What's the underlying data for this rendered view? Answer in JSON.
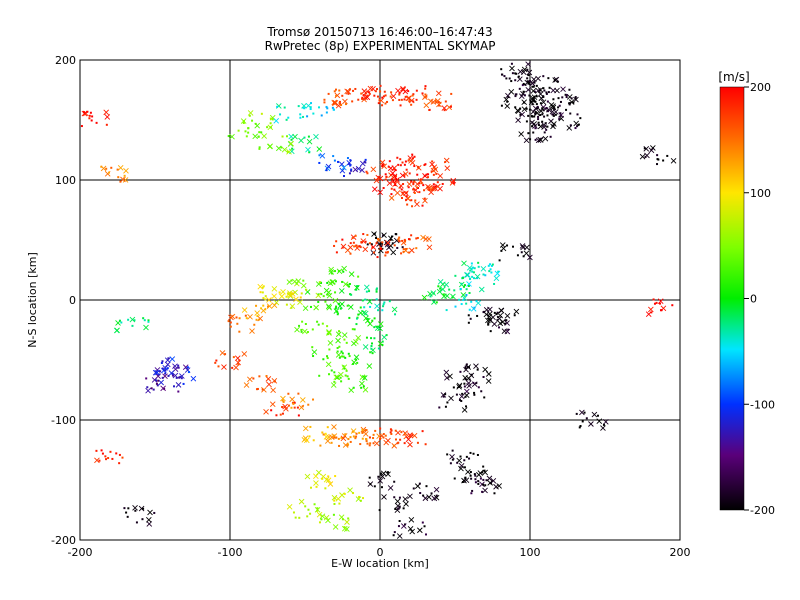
{
  "chart_data": {
    "type": "scatter",
    "title": "Tromsø 20150713 16:46:00–16:47:43",
    "subtitle": "RwPretec (8p) EXPERIMENTAL SKYMAP",
    "xlabel": "E-W location [km]",
    "ylabel": "N-S location [km]",
    "xlim": [
      -200,
      200
    ],
    "ylim": [
      -200,
      200
    ],
    "xticks": [
      -200,
      -100,
      0,
      100,
      200
    ],
    "yticks": [
      -200,
      -100,
      0,
      100,
      200
    ],
    "grid": true,
    "colorbar": {
      "label": "[m/s]",
      "min": -200,
      "max": 200,
      "ticks": [
        200,
        100,
        0,
        -100,
        -200
      ],
      "colormap": "rainbow (black-purple-blue-cyan-green-yellow-red)"
    },
    "markers": [
      "cross",
      "dot"
    ],
    "series": [
      {
        "cluster": "NE black cloud",
        "points": [
          [
            95,
            185,
            -200
          ],
          [
            100,
            175,
            -190
          ],
          [
            105,
            170,
            -200
          ],
          [
            110,
            160,
            -200
          ],
          [
            115,
            155,
            -190
          ],
          [
            120,
            165,
            -200
          ],
          [
            112,
            148,
            -195
          ],
          [
            98,
            160,
            -200
          ],
          [
            105,
            140,
            -200
          ],
          [
            125,
            150,
            -190
          ],
          [
            88,
            190,
            -200
          ],
          [
            108,
            180,
            -200
          ],
          [
            118,
            172,
            -195
          ],
          [
            102,
            152,
            -200
          ],
          [
            92,
            168,
            -200
          ]
        ]
      },
      {
        "cluster": "upper red band",
        "points": [
          [
            -20,
            170,
            170
          ],
          [
            -10,
            172,
            180
          ],
          [
            0,
            170,
            175
          ],
          [
            10,
            168,
            185
          ],
          [
            20,
            172,
            180
          ],
          [
            30,
            168,
            170
          ],
          [
            -30,
            168,
            160
          ],
          [
            40,
            165,
            175
          ]
        ]
      },
      {
        "cluster": "red blob",
        "points": [
          [
            0,
            105,
            180
          ],
          [
            10,
            110,
            190
          ],
          [
            20,
            100,
            185
          ],
          [
            30,
            95,
            175
          ],
          [
            40,
            100,
            190
          ],
          [
            15,
            90,
            170
          ],
          [
            25,
            85,
            180
          ],
          [
            5,
            95,
            195
          ],
          [
            35,
            110,
            185
          ],
          [
            20,
            115,
            180
          ]
        ]
      },
      {
        "cluster": "band 50km",
        "points": [
          [
            -20,
            45,
            180
          ],
          [
            -10,
            48,
            170
          ],
          [
            0,
            45,
            -190
          ],
          [
            5,
            50,
            -200
          ],
          [
            15,
            47,
            170
          ],
          [
            25,
            45,
            160
          ],
          [
            -5,
            42,
            185
          ]
        ]
      },
      {
        "cluster": "central green cloud",
        "points": [
          [
            -40,
            0,
            20
          ],
          [
            -30,
            10,
            10
          ],
          [
            -20,
            -10,
            0
          ],
          [
            -10,
            -20,
            -10
          ],
          [
            -25,
            -30,
            30
          ],
          [
            -35,
            -45,
            20
          ],
          [
            -15,
            -50,
            10
          ],
          [
            -30,
            -60,
            30
          ],
          [
            -20,
            -70,
            20
          ],
          [
            -10,
            5,
            -20
          ],
          [
            0,
            -5,
            -30
          ],
          [
            -45,
            -25,
            40
          ],
          [
            -25,
            20,
            20
          ],
          [
            -5,
            -35,
            -10
          ],
          [
            -50,
            10,
            60
          ]
        ]
      },
      {
        "cluster": "west yellow/red",
        "points": [
          [
            -60,
            0,
            90
          ],
          [
            -70,
            5,
            100
          ],
          [
            -80,
            -10,
            120
          ],
          [
            -90,
            -20,
            150
          ],
          [
            -100,
            -50,
            170
          ],
          [
            -80,
            -70,
            160
          ],
          [
            -65,
            -90,
            180
          ],
          [
            -55,
            -85,
            140
          ]
        ]
      },
      {
        "cluster": "lower band",
        "points": [
          [
            -30,
            -115,
            130
          ],
          [
            -20,
            -112,
            150
          ],
          [
            -10,
            -115,
            140
          ],
          [
            0,
            -115,
            160
          ],
          [
            10,
            -112,
            170
          ],
          [
            20,
            -115,
            180
          ],
          [
            -40,
            -110,
            120
          ]
        ]
      },
      {
        "cluster": "east black",
        "points": [
          [
            55,
            -60,
            -200
          ],
          [
            60,
            -75,
            -190
          ],
          [
            50,
            -85,
            -200
          ],
          [
            65,
            -65,
            -200
          ],
          [
            70,
            -15,
            -200
          ],
          [
            75,
            -20,
            -190
          ],
          [
            80,
            -10,
            -200
          ],
          [
            90,
            40,
            -200
          ],
          [
            55,
            -130,
            -190
          ],
          [
            60,
            -145,
            -200
          ],
          [
            65,
            -150,
            -200
          ],
          [
            70,
            -155,
            -190
          ]
        ]
      },
      {
        "cluster": "east cyan",
        "points": [
          [
            50,
            10,
            -20
          ],
          [
            60,
            15,
            -40
          ],
          [
            70,
            20,
            -30
          ],
          [
            40,
            5,
            -10
          ],
          [
            55,
            -2,
            -50
          ],
          [
            65,
            25,
            -30
          ]
        ]
      },
      {
        "cluster": "south scatter",
        "points": [
          [
            -40,
            -150,
            90
          ],
          [
            -50,
            -175,
            70
          ],
          [
            -30,
            -185,
            60
          ],
          [
            -20,
            -165,
            80
          ],
          [
            0,
            -150,
            -200
          ],
          [
            10,
            -170,
            -200
          ],
          [
            20,
            -190,
            -190
          ],
          [
            30,
            -160,
            -200
          ]
        ]
      },
      {
        "cluster": "SW purple",
        "points": [
          [
            -140,
            -60,
            -130
          ],
          [
            -135,
            -65,
            -120
          ],
          [
            -145,
            -70,
            -140
          ],
          [
            -138,
            -55,
            -110
          ]
        ]
      },
      {
        "cluster": "NW misc",
        "points": [
          [
            -90,
            140,
            40
          ],
          [
            -80,
            150,
            60
          ],
          [
            -60,
            155,
            -40
          ],
          [
            -40,
            160,
            -60
          ],
          [
            -20,
            110,
            -120
          ],
          [
            -30,
            115,
            -90
          ],
          [
            -50,
            130,
            -20
          ],
          [
            -70,
            130,
            50
          ]
        ]
      },
      {
        "cluster": "edge misc",
        "points": [
          [
            -175,
            105,
            140
          ],
          [
            -190,
            150,
            200
          ],
          [
            -160,
            -180,
            -200
          ],
          [
            185,
            120,
            -200
          ],
          [
            190,
            -5,
            200
          ],
          [
            140,
            -100,
            -200
          ],
          [
            -180,
            -130,
            180
          ],
          [
            -165,
            -20,
            -20
          ]
        ]
      }
    ]
  }
}
